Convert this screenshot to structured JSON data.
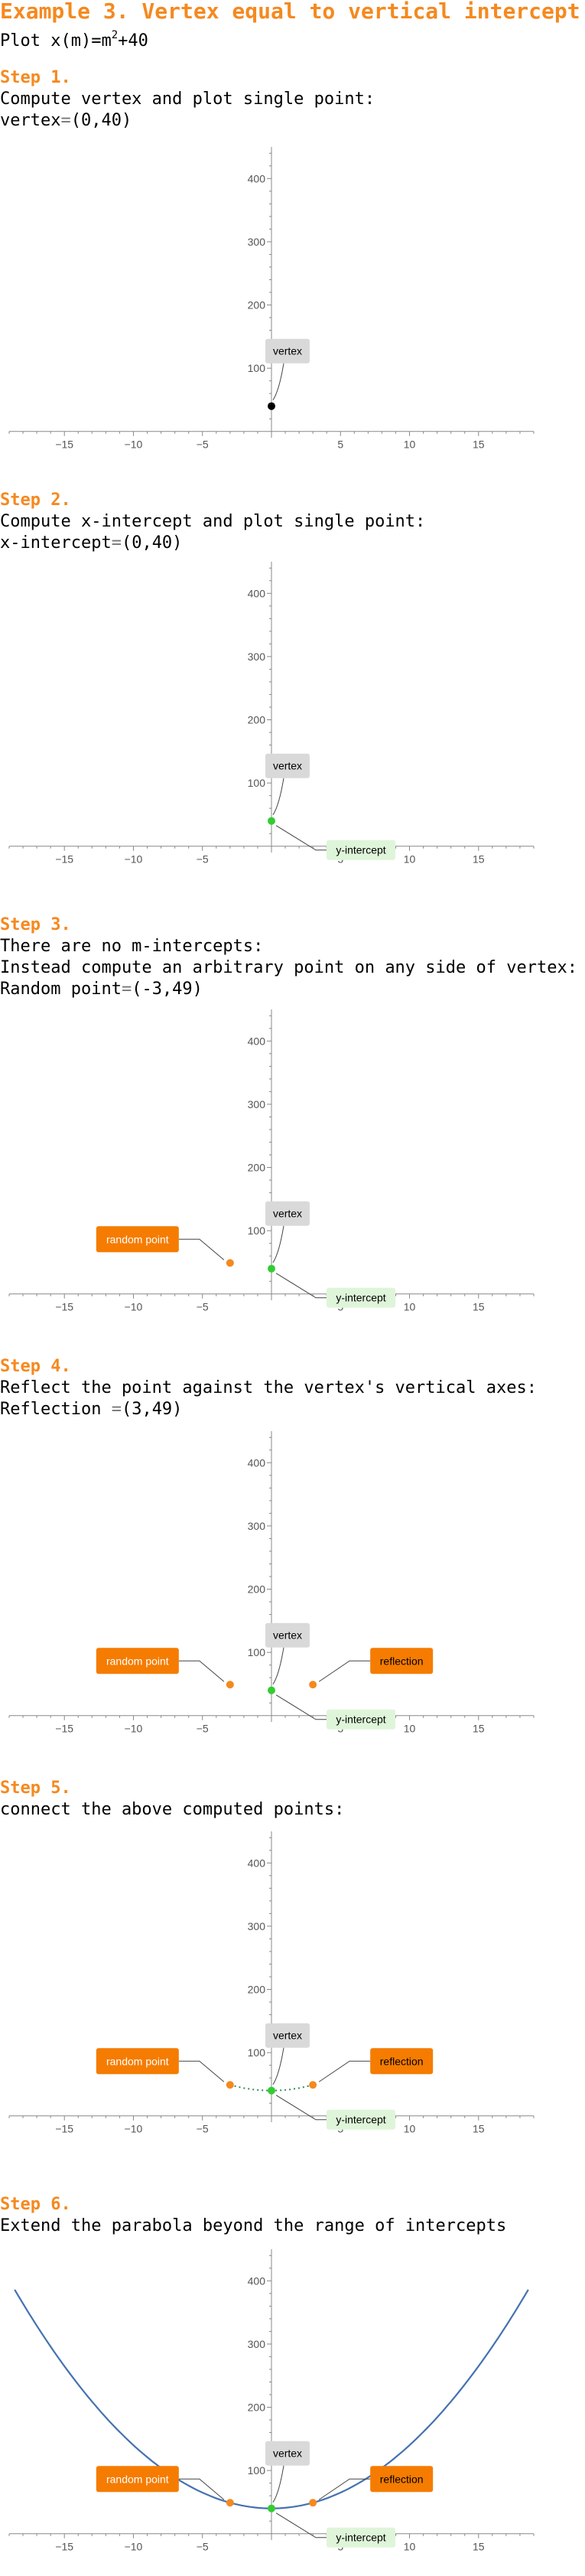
{
  "title": "Example 3. Vertex equal to vertical intercept",
  "plot_prefix": "Plot ",
  "plot_fn": "x(m)=m",
  "plot_exp": "2",
  "plot_rest": "+40",
  "colors": {
    "orange": "#f5891f",
    "label_orange": "#f57c00",
    "vertex_box": "#d9d9d9",
    "intercept_box": "#dff5d9",
    "green_point": "#33cc33",
    "black_point": "#000000",
    "curve": "#4472b0",
    "axis": "#888888"
  },
  "steps": [
    {
      "head": "Step 1.",
      "lines": [
        {
          "main": "Compute vertex and plot single point:"
        },
        {
          "main": "vertex",
          "eq": "=",
          "value": "(0,40)"
        }
      ],
      "labels": {
        "vertex": "vertex"
      },
      "chart_data": {
        "type": "scatter",
        "xlim": [
          -19,
          19
        ],
        "ylim": [
          -10,
          450
        ],
        "xticks": [
          -15,
          -10,
          -5,
          5,
          10,
          15
        ],
        "yticks": [
          100,
          200,
          300,
          400
        ],
        "points": [
          {
            "x": 0,
            "y": 40,
            "kind": "vertex",
            "color": "#000000"
          }
        ]
      }
    },
    {
      "head": "Step 2.",
      "lines": [
        {
          "main": "Compute x-intercept and plot single point:"
        },
        {
          "main": "x-intercept",
          "eq": "=",
          "value": "(0,40)"
        }
      ],
      "labels": {
        "vertex": "vertex",
        "intercept": "y-intercept"
      },
      "chart_data": {
        "type": "scatter",
        "xlim": [
          -19,
          19
        ],
        "ylim": [
          -10,
          450
        ],
        "xticks": [
          -15,
          -10,
          -5,
          5,
          10,
          15
        ],
        "yticks": [
          100,
          200,
          300,
          400
        ],
        "points": [
          {
            "x": 0,
            "y": 40,
            "kind": "vertex",
            "color": "#33cc33"
          }
        ]
      }
    },
    {
      "head": "Step 3.",
      "lines": [
        {
          "main": "There are no m-intercepts:"
        },
        {
          "main": "Instead compute an arbitrary point on any side of vertex:"
        },
        {
          "main": "Random point",
          "eq": "=",
          "value": "(-3,49)"
        }
      ],
      "labels": {
        "vertex": "vertex",
        "intercept": "y-intercept",
        "random": "random point"
      },
      "chart_data": {
        "type": "scatter",
        "xlim": [
          -19,
          19
        ],
        "ylim": [
          -10,
          450
        ],
        "xticks": [
          -15,
          -10,
          -5,
          5,
          10,
          15
        ],
        "yticks": [
          100,
          200,
          300,
          400
        ],
        "points": [
          {
            "x": 0,
            "y": 40,
            "kind": "vertex",
            "color": "#33cc33"
          },
          {
            "x": -3,
            "y": 49,
            "kind": "random",
            "color": "#f5891f"
          }
        ]
      }
    },
    {
      "head": "Step 4.",
      "lines": [
        {
          "main": "Reflect the point against the vertex's vertical axes:"
        },
        {
          "main": "Reflection ",
          "eq": "=",
          "value": "(3,49)"
        }
      ],
      "labels": {
        "vertex": "vertex",
        "intercept": "y-intercept",
        "random": "random point",
        "reflection": "reflection"
      },
      "chart_data": {
        "type": "scatter",
        "xlim": [
          -19,
          19
        ],
        "ylim": [
          -10,
          450
        ],
        "xticks": [
          -15,
          -10,
          -5,
          5,
          10,
          15
        ],
        "yticks": [
          100,
          200,
          300,
          400
        ],
        "points": [
          {
            "x": 0,
            "y": 40,
            "kind": "vertex",
            "color": "#33cc33"
          },
          {
            "x": -3,
            "y": 49,
            "kind": "random",
            "color": "#f5891f"
          },
          {
            "x": 3,
            "y": 49,
            "kind": "reflection",
            "color": "#f5891f"
          }
        ]
      }
    },
    {
      "head": "Step 5.",
      "lines": [
        {
          "main": "connect the above computed points:"
        }
      ],
      "labels": {
        "vertex": "vertex",
        "intercept": "y-intercept",
        "random": "random point",
        "reflection": "reflection"
      },
      "chart_data": {
        "type": "scatter",
        "xlim": [
          -19,
          19
        ],
        "ylim": [
          -10,
          450
        ],
        "xticks": [
          -15,
          -10,
          -5,
          5,
          10,
          15
        ],
        "yticks": [
          100,
          200,
          300,
          400
        ],
        "points": [
          {
            "x": 0,
            "y": 40,
            "kind": "vertex",
            "color": "#33cc33"
          },
          {
            "x": -3,
            "y": 49,
            "kind": "random",
            "color": "#f5891f"
          },
          {
            "x": 3,
            "y": 49,
            "kind": "reflection",
            "color": "#f5891f"
          }
        ],
        "connect": {
          "x_from": -3,
          "x_to": 3,
          "style": "dotted"
        }
      }
    },
    {
      "head": "Step 6.",
      "lines": [
        {
          "main": "Extend the parabola beyond the range of intercepts"
        }
      ],
      "labels": {
        "vertex": "vertex",
        "intercept": "y-intercept",
        "random": "random point",
        "reflection": "reflection"
      },
      "chart_data": {
        "type": "line",
        "xlim": [
          -19,
          19
        ],
        "ylim": [
          -10,
          450
        ],
        "xticks": [
          -15,
          -10,
          -5,
          5,
          10,
          15
        ],
        "yticks": [
          100,
          200,
          300,
          400
        ],
        "points": [
          {
            "x": 0,
            "y": 40,
            "kind": "vertex",
            "color": "#33cc33"
          },
          {
            "x": -3,
            "y": 49,
            "kind": "random",
            "color": "#f5891f"
          },
          {
            "x": 3,
            "y": 49,
            "kind": "reflection",
            "color": "#f5891f"
          }
        ],
        "curve": {
          "fn": "m^2+40",
          "x_from": -18.6,
          "x_to": 18.6
        }
      }
    }
  ]
}
